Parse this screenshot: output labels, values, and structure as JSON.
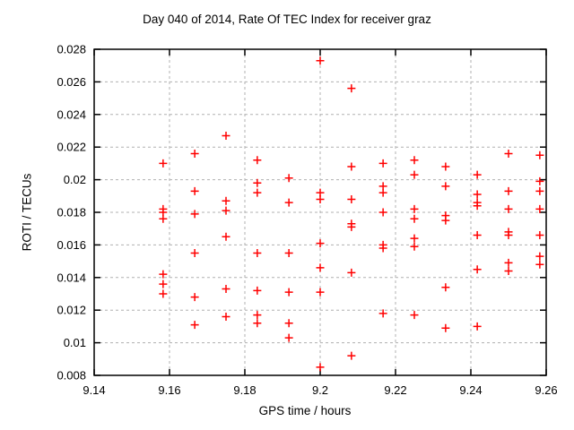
{
  "title": "Day 040 of 2014, Rate Of TEC Index for receiver graz",
  "colors": {
    "marker": "#ff0000",
    "grid": "#b0b0b0",
    "frame": "#000000",
    "text": "#000000"
  },
  "chart_data": {
    "type": "scatter",
    "title": "Day 040 of 2014, Rate Of TEC Index for receiver graz",
    "xlabel": "GPS time / hours",
    "ylabel": "ROTI / TECUs",
    "xlim": [
      9.14,
      9.26
    ],
    "ylim": [
      0.008,
      0.028
    ],
    "xtick_labels": [
      "9.14",
      "9.16",
      "9.18",
      "9.2",
      "9.22",
      "9.24",
      "9.26"
    ],
    "ytick_labels": [
      "0.008",
      "0.01",
      "0.012",
      "0.014",
      "0.016",
      "0.018",
      "0.02",
      "0.022",
      "0.024",
      "0.026",
      "0.028"
    ],
    "grid": true,
    "legend_position": "none",
    "marker_symbol": "plus",
    "points": [
      [
        9.1583,
        0.021
      ],
      [
        9.1583,
        0.0182
      ],
      [
        9.1583,
        0.018
      ],
      [
        9.1583,
        0.0176
      ],
      [
        9.1583,
        0.0142
      ],
      [
        9.1583,
        0.0136
      ],
      [
        9.1583,
        0.013
      ],
      [
        9.1667,
        0.0216
      ],
      [
        9.1667,
        0.0193
      ],
      [
        9.1667,
        0.0179
      ],
      [
        9.1667,
        0.0155
      ],
      [
        9.1667,
        0.0128
      ],
      [
        9.1667,
        0.0111
      ],
      [
        9.175,
        0.0227
      ],
      [
        9.175,
        0.0187
      ],
      [
        9.175,
        0.0181
      ],
      [
        9.175,
        0.0165
      ],
      [
        9.175,
        0.0133
      ],
      [
        9.175,
        0.0116
      ],
      [
        9.1833,
        0.0212
      ],
      [
        9.1833,
        0.0198
      ],
      [
        9.1833,
        0.0192
      ],
      [
        9.1833,
        0.0155
      ],
      [
        9.1833,
        0.0132
      ],
      [
        9.1833,
        0.0117
      ],
      [
        9.1833,
        0.0112
      ],
      [
        9.1917,
        0.0201
      ],
      [
        9.1917,
        0.0186
      ],
      [
        9.1917,
        0.0155
      ],
      [
        9.1917,
        0.0131
      ],
      [
        9.1917,
        0.0112
      ],
      [
        9.1917,
        0.0103
      ],
      [
        9.2,
        0.0273
      ],
      [
        9.2,
        0.0192
      ],
      [
        9.2,
        0.0188
      ],
      [
        9.2,
        0.0161
      ],
      [
        9.2,
        0.0146
      ],
      [
        9.2,
        0.0131
      ],
      [
        9.2,
        0.0085
      ],
      [
        9.2083,
        0.0256
      ],
      [
        9.2083,
        0.0208
      ],
      [
        9.2083,
        0.0188
      ],
      [
        9.2083,
        0.0173
      ],
      [
        9.2083,
        0.0171
      ],
      [
        9.2083,
        0.0143
      ],
      [
        9.2083,
        0.0092
      ],
      [
        9.2167,
        0.021
      ],
      [
        9.2167,
        0.0196
      ],
      [
        9.2167,
        0.0192
      ],
      [
        9.2167,
        0.018
      ],
      [
        9.2167,
        0.016
      ],
      [
        9.2167,
        0.0158
      ],
      [
        9.2167,
        0.0118
      ],
      [
        9.225,
        0.0212
      ],
      [
        9.225,
        0.0203
      ],
      [
        9.225,
        0.0182
      ],
      [
        9.225,
        0.0176
      ],
      [
        9.225,
        0.0164
      ],
      [
        9.225,
        0.0159
      ],
      [
        9.225,
        0.0117
      ],
      [
        9.2333,
        0.0208
      ],
      [
        9.2333,
        0.0196
      ],
      [
        9.2333,
        0.0178
      ],
      [
        9.2333,
        0.0175
      ],
      [
        9.2333,
        0.0134
      ],
      [
        9.2333,
        0.0109
      ],
      [
        9.2417,
        0.0203
      ],
      [
        9.2417,
        0.0191
      ],
      [
        9.2417,
        0.0186
      ],
      [
        9.2417,
        0.0184
      ],
      [
        9.2417,
        0.0166
      ],
      [
        9.2417,
        0.0145
      ],
      [
        9.2417,
        0.011
      ],
      [
        9.25,
        0.0216
      ],
      [
        9.25,
        0.0193
      ],
      [
        9.25,
        0.0182
      ],
      [
        9.25,
        0.0168
      ],
      [
        9.25,
        0.0166
      ],
      [
        9.25,
        0.0149
      ],
      [
        9.25,
        0.0144
      ],
      [
        9.2583,
        0.0215
      ],
      [
        9.2583,
        0.0199
      ],
      [
        9.2583,
        0.0193
      ],
      [
        9.2583,
        0.0182
      ],
      [
        9.2583,
        0.0166
      ],
      [
        9.2583,
        0.0153
      ],
      [
        9.2583,
        0.0148
      ]
    ]
  }
}
